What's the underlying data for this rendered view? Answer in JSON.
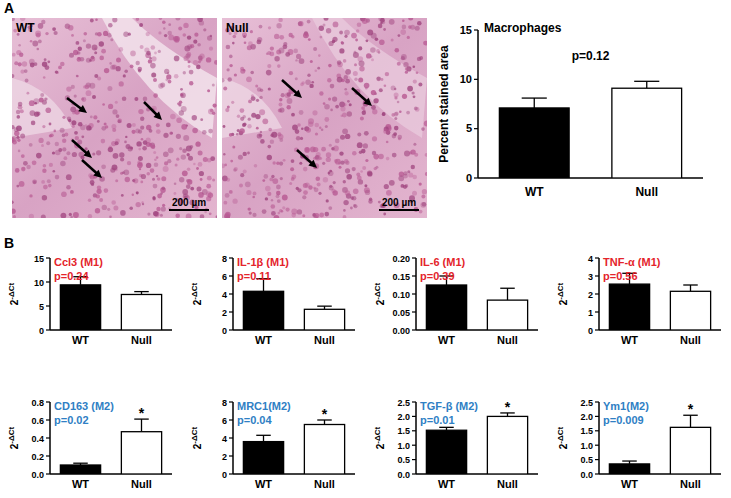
{
  "panel_labels": [
    "A",
    "B"
  ],
  "images": [
    {
      "label": "WT",
      "scale_bar": "200 µm"
    },
    {
      "label": "Null",
      "scale_bar": "200 µm"
    }
  ],
  "chart_data": [
    {
      "type": "bar",
      "title": "Macrophages",
      "annotation": "p=0.12",
      "y_label": "Percent stained area",
      "categories": [
        "WT",
        "Null"
      ],
      "values": [
        7.1,
        9.1
      ],
      "errors": [
        1.0,
        0.7
      ],
      "colors": [
        "#000000",
        "#ffffff"
      ],
      "ylim": [
        0,
        15
      ],
      "yticks": [
        0,
        5,
        10,
        15
      ]
    },
    {
      "type": "bar",
      "title": "Ccl3 (M1)",
      "annotation": "p=0.24",
      "y_label": "2",
      "y_label_sup": "-ΔCt",
      "categories": [
        "WT",
        "Null"
      ],
      "values": [
        9.4,
        7.4
      ],
      "errors": [
        1.7,
        0.6
      ],
      "colors": [
        "#000000",
        "#ffffff"
      ],
      "ylim": [
        0,
        15
      ],
      "yticks": [
        0,
        5,
        10,
        15
      ]
    },
    {
      "type": "bar",
      "title": "IL-1β (M1)",
      "annotation": "p=0.11",
      "y_label": "2",
      "y_label_sup": "-ΔCt",
      "categories": [
        "WT",
        "Null"
      ],
      "values": [
        4.3,
        2.3
      ],
      "errors": [
        1.4,
        0.35
      ],
      "colors": [
        "#000000",
        "#ffffff"
      ],
      "ylim": [
        0,
        8
      ],
      "yticks": [
        0,
        2,
        4,
        6,
        8
      ]
    },
    {
      "type": "bar",
      "title": "IL-6 (M1)",
      "annotation": "p=0.39",
      "y_label": "2",
      "y_label_sup": "-ΔCt",
      "categories": [
        "WT",
        "Null"
      ],
      "values": [
        0.125,
        0.083
      ],
      "errors": [
        0.025,
        0.033
      ],
      "colors": [
        "#000000",
        "#ffffff"
      ],
      "ylim": [
        0,
        0.2
      ],
      "yticks": [
        {
          "value": 0,
          "label": "0.00"
        },
        {
          "value": 0.05,
          "label": "0.05"
        },
        {
          "value": 0.1,
          "label": "0.10"
        },
        {
          "value": 0.15,
          "label": "0.15"
        },
        {
          "value": 0.2,
          "label": "0.20"
        }
      ]
    },
    {
      "type": "bar",
      "title": "TNF-α (M1)",
      "annotation": "p=0.56",
      "y_label": "2",
      "y_label_sup": "-ΔCt",
      "categories": [
        "WT",
        "Null"
      ],
      "values": [
        2.55,
        2.15
      ],
      "errors": [
        0.6,
        0.35
      ],
      "colors": [
        "#000000",
        "#ffffff"
      ],
      "ylim": [
        0,
        4
      ],
      "yticks": [
        0,
        1,
        2,
        3,
        4
      ]
    },
    {
      "type": "bar",
      "title": "CD163 (M2)",
      "annotation": "p=0.02",
      "y_label": "2",
      "y_label_sup": "-ΔCt",
      "categories": [
        "WT",
        "Null"
      ],
      "values": [
        0.1,
        0.47
      ],
      "errors": [
        0.02,
        0.14
      ],
      "colors": [
        "#000000",
        "#ffffff"
      ],
      "significance": [
        null,
        "*"
      ],
      "ylim": [
        0,
        0.8
      ],
      "yticks": [
        {
          "value": 0,
          "label": "0.0"
        },
        {
          "value": 0.2,
          "label": "0.2"
        },
        {
          "value": 0.4,
          "label": "0.4"
        },
        {
          "value": 0.6,
          "label": "0.6"
        },
        {
          "value": 0.8,
          "label": "0.8"
        }
      ]
    },
    {
      "type": "bar",
      "title": "MRC1(M2)",
      "annotation": "p=0.04",
      "y_label": "2",
      "y_label_sup": "-ΔCt",
      "categories": [
        "WT",
        "Null"
      ],
      "values": [
        3.6,
        5.5
      ],
      "errors": [
        0.7,
        0.5
      ],
      "colors": [
        "#000000",
        "#ffffff"
      ],
      "significance": [
        null,
        "*"
      ],
      "ylim": [
        0,
        8
      ],
      "yticks": [
        0,
        2,
        4,
        6,
        8
      ]
    },
    {
      "type": "bar",
      "title": "TGF-β (M2)",
      "annotation": "p=0.01",
      "y_label": "2",
      "y_label_sup": "-ΔCt",
      "categories": [
        "WT",
        "Null"
      ],
      "values": [
        1.52,
        2.0
      ],
      "errors": [
        0.1,
        0.12
      ],
      "colors": [
        "#000000",
        "#ffffff"
      ],
      "significance": [
        null,
        "*"
      ],
      "ylim": [
        0,
        2.5
      ],
      "yticks": [
        {
          "value": 0,
          "label": "0.0"
        },
        {
          "value": 0.5,
          "label": "0.5"
        },
        {
          "value": 1,
          "label": "1.0"
        },
        {
          "value": 1.5,
          "label": "1.5"
        },
        {
          "value": 2,
          "label": "2.0"
        },
        {
          "value": 2.5,
          "label": "2.5"
        }
      ]
    },
    {
      "type": "bar",
      "title": "Ym1(M2)",
      "annotation": "p=0.009",
      "y_label": "2",
      "y_label_sup": "-ΔCt",
      "categories": [
        "WT",
        "Null"
      ],
      "values": [
        0.35,
        1.62
      ],
      "errors": [
        0.1,
        0.42
      ],
      "colors": [
        "#000000",
        "#ffffff"
      ],
      "significance": [
        null,
        "*"
      ],
      "ylim": [
        0,
        2.5
      ],
      "yticks": [
        {
          "value": 0,
          "label": "0.0"
        },
        {
          "value": 0.5,
          "label": "0.5"
        },
        {
          "value": 1,
          "label": "1.0"
        },
        {
          "value": 1.5,
          "label": "1.5"
        },
        {
          "value": 2,
          "label": "2.0"
        },
        {
          "value": 2.5,
          "label": "2.5"
        }
      ]
    }
  ]
}
